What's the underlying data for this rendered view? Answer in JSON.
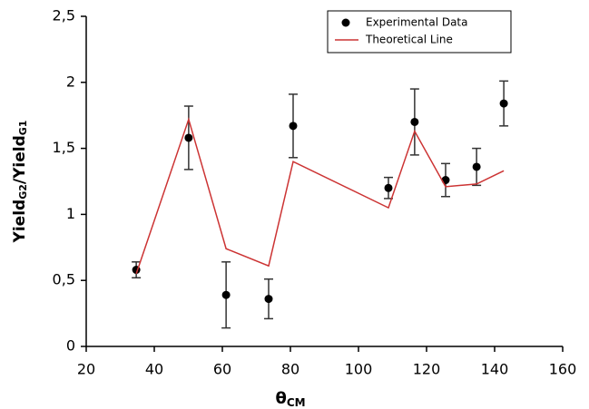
{
  "chart_data": {
    "type": "scatter",
    "xlabel": {
      "text": "θ",
      "sub": "CM"
    },
    "ylabel": {
      "parts": [
        {
          "text": "Yield",
          "sub": "G2"
        },
        {
          "text": "/Yield",
          "sub": "G1"
        }
      ]
    },
    "xlim": [
      20,
      160
    ],
    "xticks": [
      20,
      40,
      60,
      80,
      100,
      120,
      140,
      160
    ],
    "ylim": [
      0,
      2.5
    ],
    "yticks": [
      0,
      {
        "value": 0.5,
        "label": "0,5"
      },
      1,
      {
        "value": 1.5,
        "label": "1,5"
      },
      2,
      {
        "value": 2.5,
        "label": "2,5"
      }
    ],
    "legend": "upper right",
    "series": [
      {
        "name": "Experimental Data",
        "type": "scatter",
        "color": "#000000",
        "x": [
          34.7,
          50.1,
          61.1,
          73.6,
          80.8,
          108.8,
          116.5,
          125.6,
          134.7,
          142.7
        ],
        "values": [
          0.58,
          1.58,
          0.39,
          0.36,
          1.67,
          1.2,
          1.7,
          1.26,
          1.36,
          1.84
        ],
        "errors": [
          0.06,
          0.24,
          0.25,
          0.15,
          0.24,
          0.08,
          0.25,
          0.125,
          0.14,
          0.17
        ]
      },
      {
        "name": "Theoretical Line",
        "type": "line",
        "color": "#cc3333",
        "x": [
          34.7,
          50.1,
          61.1,
          73.6,
          80.8,
          108.8,
          116.5,
          125.6,
          134.7,
          142.7
        ],
        "values": [
          0.55,
          1.72,
          0.74,
          0.61,
          1.4,
          1.05,
          1.63,
          1.21,
          1.23,
          1.33
        ]
      }
    ]
  }
}
